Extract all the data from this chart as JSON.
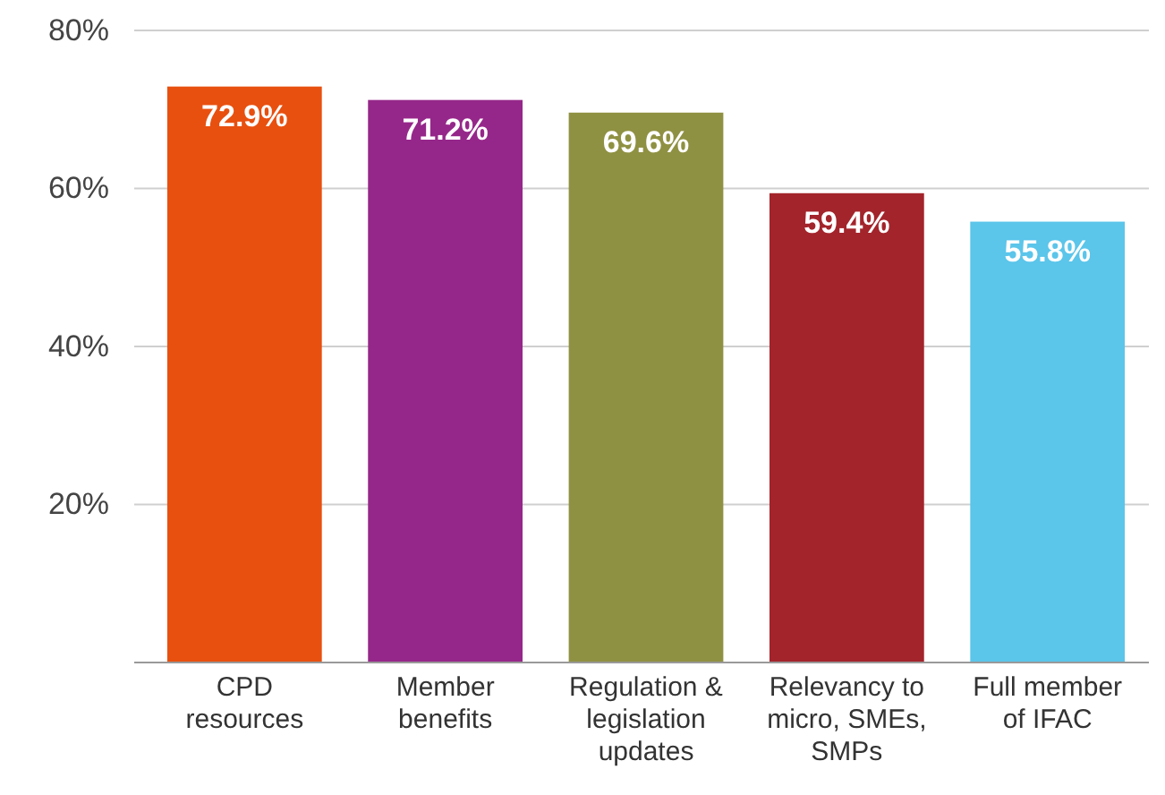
{
  "chart_data": {
    "type": "bar",
    "categories": [
      "CPD resources",
      "Member benefits",
      "Regulation & legislation updates",
      "Relevancy to micro, SMEs, SMPs",
      "Full member of IFAC"
    ],
    "values": [
      72.9,
      71.2,
      69.6,
      59.4,
      55.8
    ],
    "colors": [
      "#e8500f",
      "#96278a",
      "#8f9142",
      "#a3242b",
      "#5bc5ea"
    ],
    "value_labels": [
      "72.9%",
      "71.2%",
      "69.6%",
      "59.4%",
      "55.8%"
    ],
    "ylim": [
      0,
      80
    ],
    "yticks": [
      {
        "value": 0,
        "label": null
      },
      {
        "value": 20,
        "label": "20%"
      },
      {
        "value": 40,
        "label": "40%"
      },
      {
        "value": 60,
        "label": "60%"
      },
      {
        "value": 80,
        "label": "80%"
      }
    ],
    "grid": "y"
  }
}
